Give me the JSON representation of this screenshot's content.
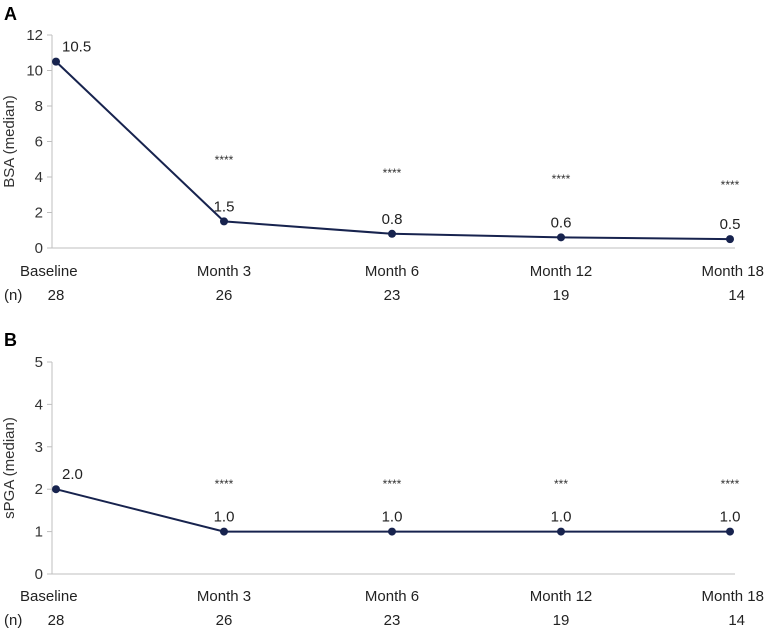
{
  "chart_data": [
    {
      "type": "line",
      "panel": "A",
      "ylabel": "BSA (median)",
      "ylim": [
        0,
        12
      ],
      "yticks": [
        0,
        2,
        4,
        6,
        8,
        10,
        12
      ],
      "categories": [
        "Baseline",
        "Month 3",
        "Month 6",
        "Month 12",
        "Month 18"
      ],
      "n_label": "(n)",
      "n_values": [
        "28",
        "26",
        "23",
        "19",
        "14"
      ],
      "values": [
        10.5,
        1.5,
        0.8,
        0.6,
        0.5
      ],
      "data_labels": [
        "10.5",
        "1.5",
        "0.8",
        "0.6",
        "0.5"
      ],
      "significance": [
        "",
        "****",
        "****",
        "****",
        "****"
      ]
    },
    {
      "type": "line",
      "panel": "B",
      "ylabel": "sPGA (median)",
      "ylim": [
        0,
        5
      ],
      "yticks": [
        0,
        1,
        2,
        3,
        4,
        5
      ],
      "categories": [
        "Baseline",
        "Month 3",
        "Month 6",
        "Month 12",
        "Month 18"
      ],
      "n_label": "(n)",
      "n_values": [
        "28",
        "26",
        "23",
        "19",
        "14"
      ],
      "values": [
        2.0,
        1.0,
        1.0,
        1.0,
        1.0
      ],
      "data_labels": [
        "2.0",
        "1.0",
        "1.0",
        "1.0",
        "1.0"
      ],
      "significance": [
        "",
        "****",
        "****",
        "***",
        "****"
      ]
    }
  ],
  "colors": {
    "series": "#17234e",
    "axis": "#bfbfbf"
  }
}
